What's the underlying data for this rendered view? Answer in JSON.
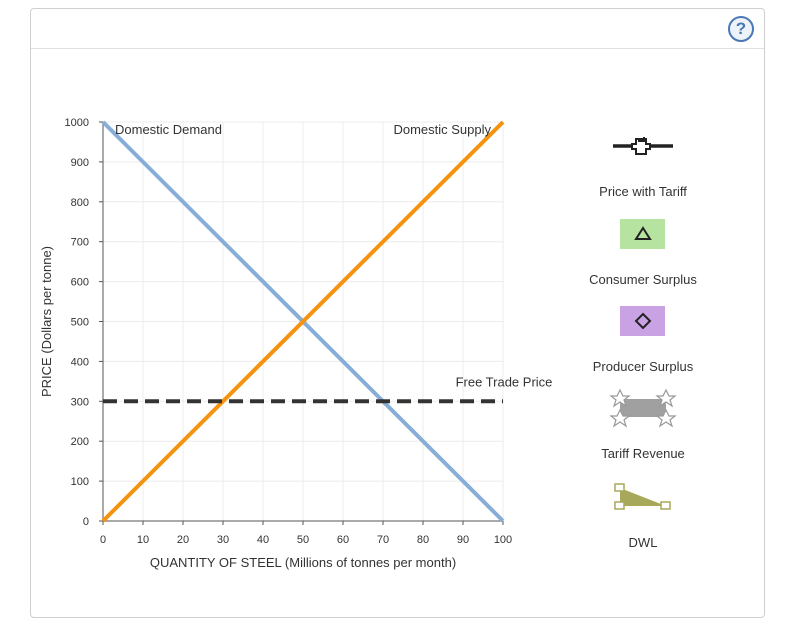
{
  "help": {
    "label": "?"
  },
  "chart_data": {
    "type": "line",
    "xlabel": "QUANTITY OF STEEL (Millions of tonnes per month)",
    "ylabel": "PRICE (Dollars per tonne)",
    "xlim": [
      0,
      100
    ],
    "ylim": [
      0,
      1000
    ],
    "x_ticks": [
      0,
      10,
      20,
      30,
      40,
      50,
      60,
      70,
      80,
      90,
      100
    ],
    "y_ticks": [
      0,
      100,
      200,
      300,
      400,
      500,
      600,
      700,
      800,
      900,
      1000
    ],
    "grid": true,
    "series": [
      {
        "name": "Domestic Demand",
        "color": "#86aed6",
        "x": [
          0,
          100
        ],
        "y": [
          1000,
          0
        ]
      },
      {
        "name": "Domestic Supply",
        "color": "#f5930f",
        "x": [
          0,
          100
        ],
        "y": [
          0,
          1000
        ]
      },
      {
        "name": "Free Trade Price",
        "color": "#333333",
        "style": "dashed",
        "x": [
          0,
          100
        ],
        "y": [
          300,
          300
        ]
      }
    ],
    "legend_placement": "right",
    "legend": [
      {
        "label": "Price with Tariff",
        "icon": "black-line-cross-marker-icon",
        "color": "#222222"
      },
      {
        "label": "Consumer Surplus",
        "icon": "green-triangle-area-icon",
        "color": "#b6e3a0"
      },
      {
        "label": "Producer Surplus",
        "icon": "purple-diamond-area-icon",
        "color": "#c9a2e4"
      },
      {
        "label": "Tariff Revenue",
        "icon": "grey-star-area-icon",
        "color": "#a0a0a0"
      },
      {
        "label": "DWL",
        "icon": "olive-triangle-area-icon",
        "color": "#a8a85a"
      }
    ]
  }
}
